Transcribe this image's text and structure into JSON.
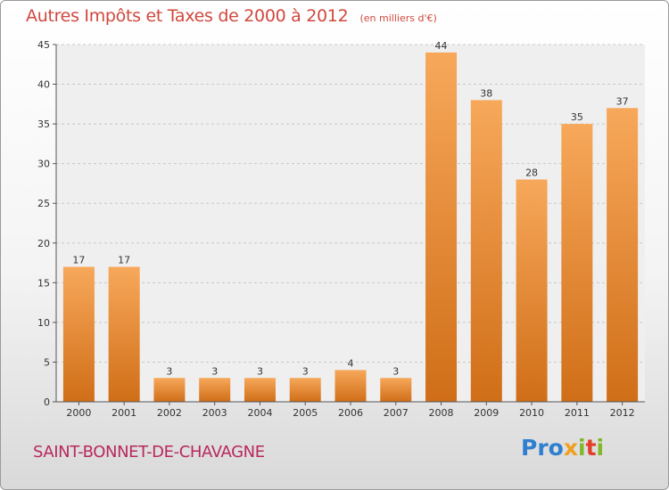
{
  "title": "Autres Impôts et Taxes de 2000 à 2012",
  "unit_note": "(en milliers d'€)",
  "commune": "SAINT-BONNET-DE-CHAVAGNE",
  "logo": "Proxiti",
  "colors": {
    "title": "#d0483e",
    "commune": "#b8285d",
    "bar_top": "#f7a85a",
    "bar_bottom": "#d06e18"
  },
  "chart_data": {
    "type": "bar",
    "categories": [
      "2000",
      "2001",
      "2002",
      "2003",
      "2004",
      "2005",
      "2006",
      "2007",
      "2008",
      "2009",
      "2010",
      "2011",
      "2012"
    ],
    "values": [
      17,
      17,
      3,
      3,
      3,
      3,
      4,
      3,
      44,
      38,
      28,
      35,
      37
    ],
    "ylim": [
      0,
      45
    ],
    "yticks": [
      0,
      5,
      10,
      15,
      20,
      25,
      30,
      35,
      40,
      45
    ],
    "grid": true,
    "legend": "none"
  }
}
